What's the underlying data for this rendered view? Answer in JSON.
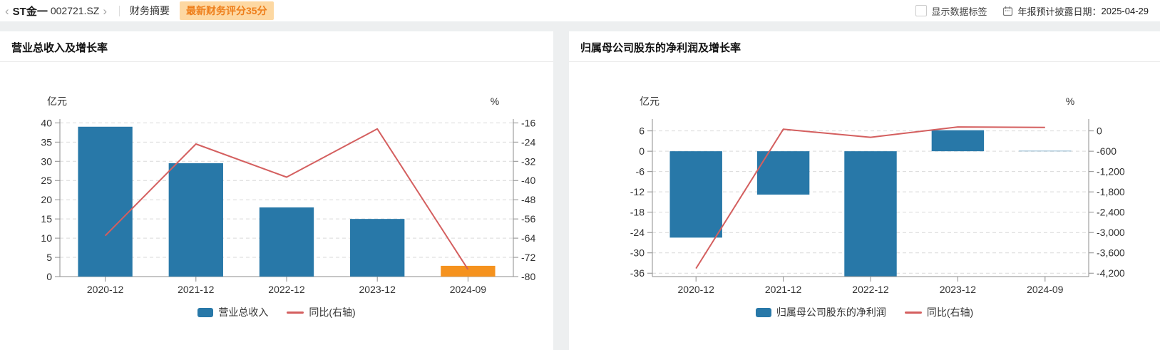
{
  "topbar": {
    "back_chevron": "‹",
    "stock_name": "ST金一",
    "stock_code": "002721.SZ",
    "forward_chevron": "›",
    "tab_label": "财务摘要",
    "score_badge": "最新财务评分35分",
    "show_labels_label": "显示数据标签",
    "report_date_label": "年报预计披露日期：",
    "report_date": "2025-04-29"
  },
  "colors": {
    "bar_blue": "#2878a8",
    "bar_orange": "#f5921e",
    "line_red": "#d45f5f",
    "badge_bg": "#fdd8a2",
    "badge_text": "#ee7e1a",
    "grid": "#d9d9d9",
    "axis": "#8c8c8c",
    "tick_text": "#303030"
  },
  "chart_data": [
    {
      "type": "bar",
      "title": "营业总收入及增长率",
      "left_unit": "亿元",
      "right_unit": "%",
      "categories": [
        "2020-12",
        "2021-12",
        "2022-12",
        "2023-12",
        "2024-09"
      ],
      "series": [
        {
          "name": "营业总收入",
          "type": "bar",
          "axis": "left",
          "color": "#2878a8",
          "bar_colors": [
            "#2878a8",
            "#2878a8",
            "#2878a8",
            "#2878a8",
            "#f5921e"
          ],
          "values": [
            39.0,
            29.5,
            18.0,
            15.0,
            2.8
          ]
        },
        {
          "name": "同比(右轴)",
          "type": "line",
          "axis": "right",
          "color": "#d45f5f",
          "values": [
            -63,
            -24.8,
            -38.6,
            -18.5,
            -77
          ]
        }
      ],
      "left_axis": {
        "min": 0,
        "max": 41,
        "ticks": [
          40,
          35,
          30,
          25,
          20,
          15,
          10,
          5,
          0
        ]
      },
      "right_axis": {
        "min": -80,
        "max": -14.4,
        "ticks": [
          -16,
          -24,
          -32,
          -40,
          -48,
          -56,
          -64,
          -72,
          -80
        ]
      },
      "grid": "dashed",
      "legend_position": "bottom"
    },
    {
      "type": "bar",
      "title": "归属母公司股东的净利润及增长率",
      "left_unit": "亿元",
      "right_unit": "%",
      "categories": [
        "2020-12",
        "2021-12",
        "2022-12",
        "2023-12",
        "2024-09"
      ],
      "series": [
        {
          "name": "归属母公司股东的净利润",
          "type": "bar",
          "axis": "left",
          "color": "#2878a8",
          "bar_colors": [
            "#2878a8",
            "#2878a8",
            "#2878a8",
            "#2878a8",
            "#2878a8"
          ],
          "values": [
            -25.5,
            -12.8,
            -36.9,
            6.2,
            0.1
          ]
        },
        {
          "name": "同比(右轴)",
          "type": "line",
          "axis": "right",
          "color": "#d45f5f",
          "values": [
            -4060,
            49,
            -188,
            117,
            102
          ]
        }
      ],
      "left_axis": {
        "min": -37,
        "max": 9.5,
        "ticks": [
          6,
          0,
          -6,
          -12,
          -18,
          -24,
          -30,
          -36
        ]
      },
      "right_axis": {
        "min": -4300,
        "max": 350,
        "ticks": [
          0,
          -600,
          -1200,
          -1800,
          -2400,
          -3000,
          -3600,
          -4200
        ]
      },
      "grid": "dashed",
      "legend_position": "bottom"
    }
  ]
}
